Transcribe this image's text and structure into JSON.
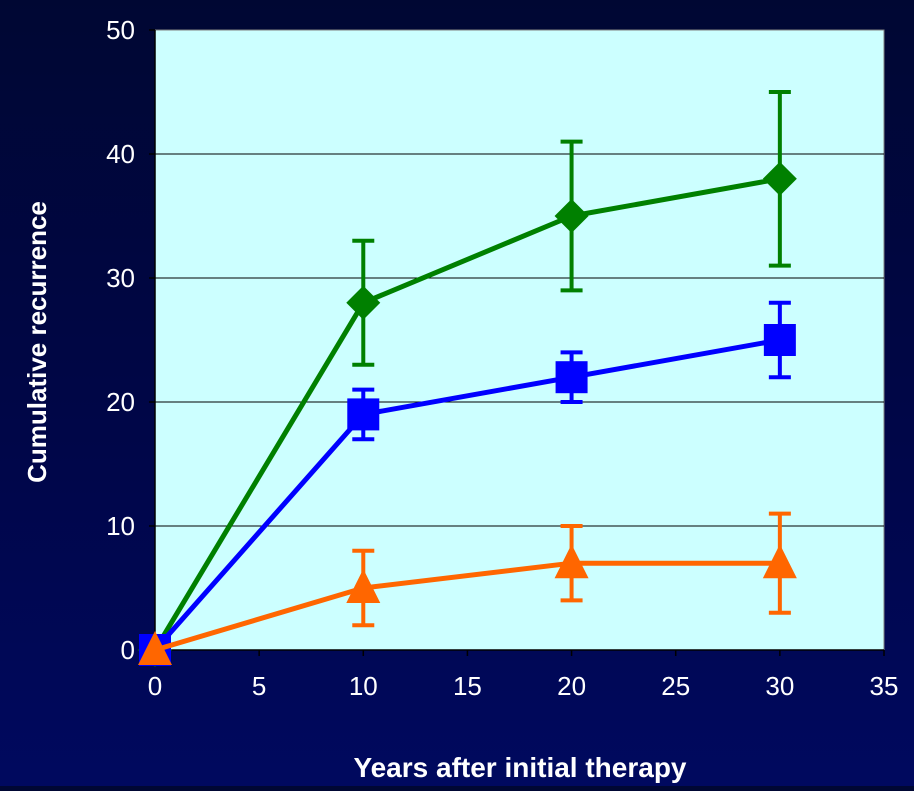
{
  "chart_data": {
    "type": "line",
    "title": "",
    "xlabel": "Years after initial therapy",
    "ylabel": "Cumulative recurrence",
    "xlim": [
      0,
      35
    ],
    "ylim": [
      0,
      50
    ],
    "x_ticks": [
      0,
      5,
      10,
      15,
      20,
      25,
      30,
      35
    ],
    "y_ticks": [
      0,
      10,
      20,
      30,
      40,
      50
    ],
    "grid": "horizontal",
    "legend": "none",
    "plot_background": "#ccffff",
    "axis_color": "#000000",
    "text_color": "#ffffff",
    "series": [
      {
        "color": "#008000",
        "marker": "diamond",
        "x": [
          0,
          10,
          20,
          30
        ],
        "y": [
          0,
          28,
          35,
          38
        ],
        "error_low": [
          0,
          23,
          29,
          31
        ],
        "error_high": [
          0,
          33,
          41,
          45
        ]
      },
      {
        "color": "#0000ff",
        "marker": "square",
        "x": [
          0,
          10,
          20,
          30
        ],
        "y": [
          0,
          19,
          22,
          25
        ],
        "error_low": [
          0,
          17,
          20,
          22
        ],
        "error_high": [
          0,
          21,
          24,
          28
        ]
      },
      {
        "color": "#ff6600",
        "marker": "triangle",
        "x": [
          0,
          10,
          20,
          30
        ],
        "y": [
          0,
          5,
          7,
          7
        ],
        "error_low": [
          0,
          2,
          4,
          3
        ],
        "error_high": [
          0,
          8,
          10,
          11
        ]
      }
    ]
  }
}
